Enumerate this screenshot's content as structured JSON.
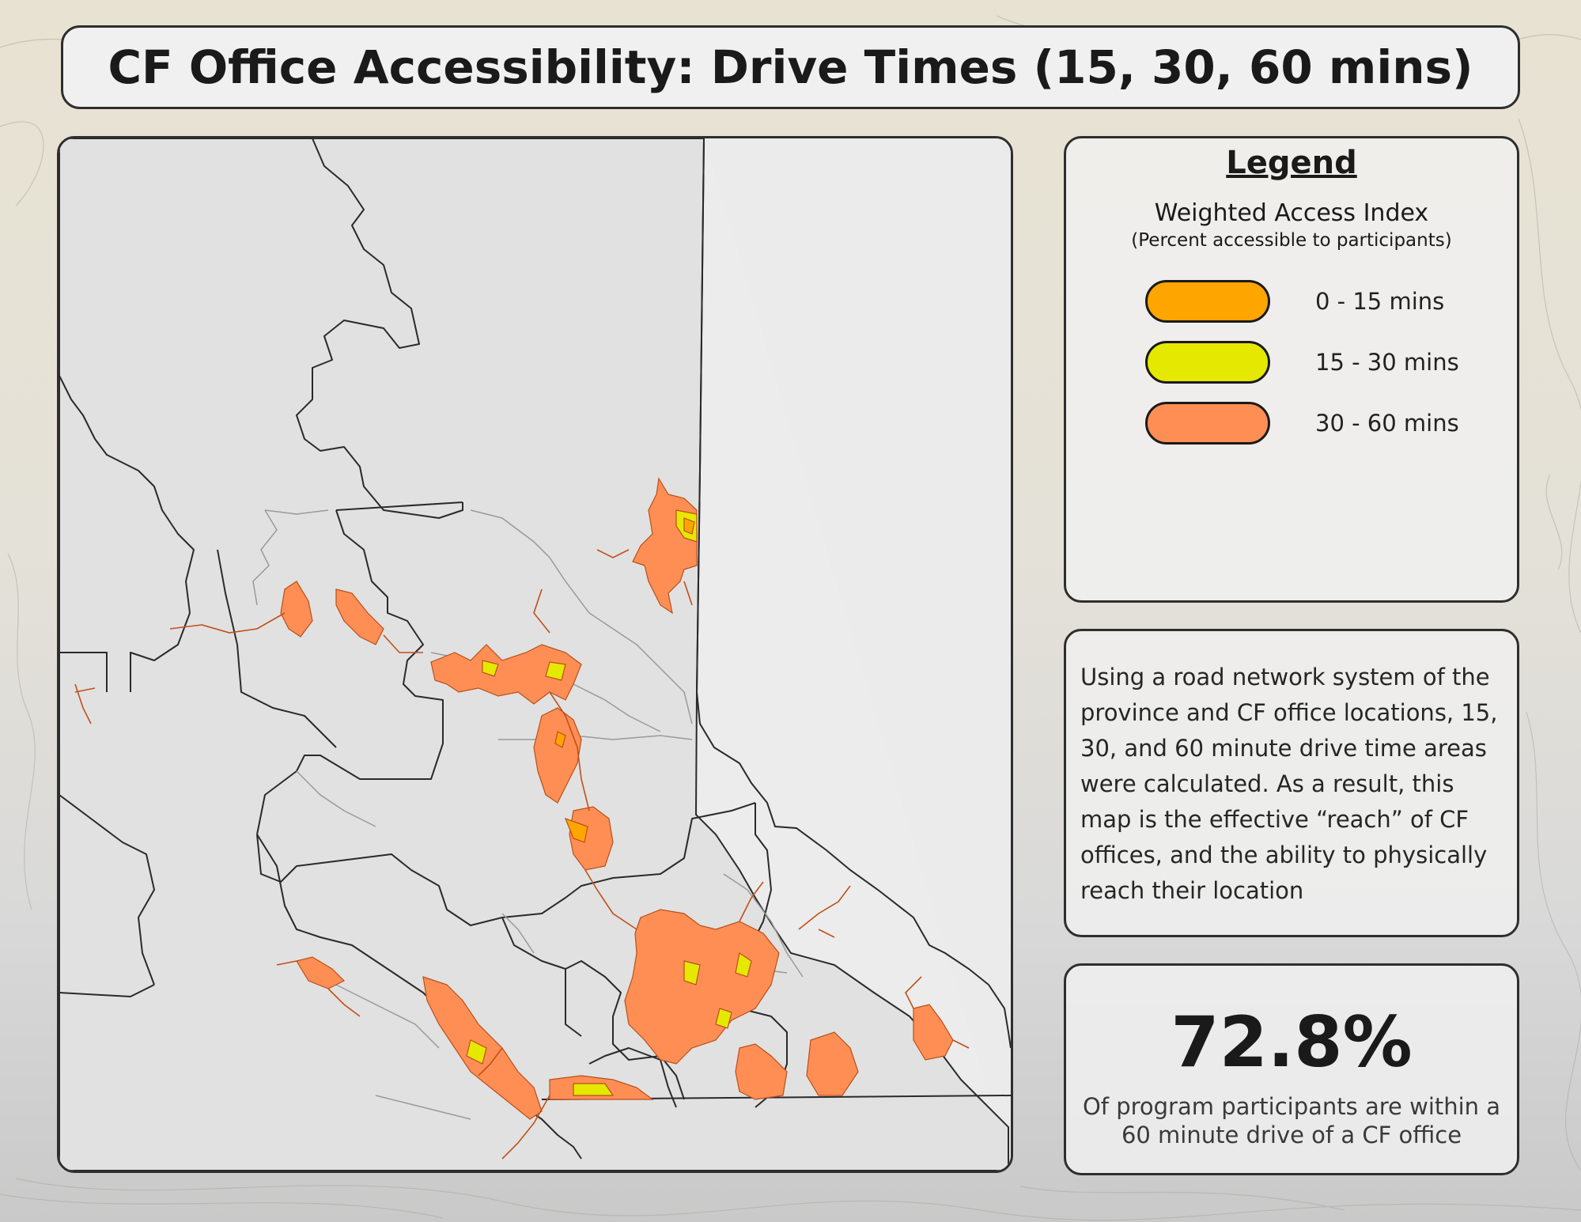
{
  "title": "CF Office Accessibility: Drive Times (15, 30, 60 mins)",
  "legend": {
    "title": "Legend",
    "subtitle": "Weighted Access Index",
    "note": "(Percent accessible to participants)",
    "items": [
      {
        "label": "0 - 15 mins",
        "color": "#ffa500"
      },
      {
        "label": "15 - 30 mins",
        "color": "#e5e800"
      },
      {
        "label": "30 - 60 mins",
        "color": "#ff8e55"
      }
    ]
  },
  "description": "Using a road network system of the province and CF office locations, 15, 30, and 60 minute drive time areas were calculated. As a result, this map is the effective “reach” of CF offices, and the ability to physically reach their location",
  "stat": {
    "value": "72.8%",
    "caption": "Of program participants are within a 60 minute drive of a CF office"
  },
  "colors": {
    "drive_0_15": "#ffa500",
    "drive_15_30": "#e5e800",
    "drive_30_60": "#ff8e55",
    "road_line": "#c0501a",
    "region_border": "#2a2a2a",
    "subregion_border": "#9a9a9a"
  }
}
